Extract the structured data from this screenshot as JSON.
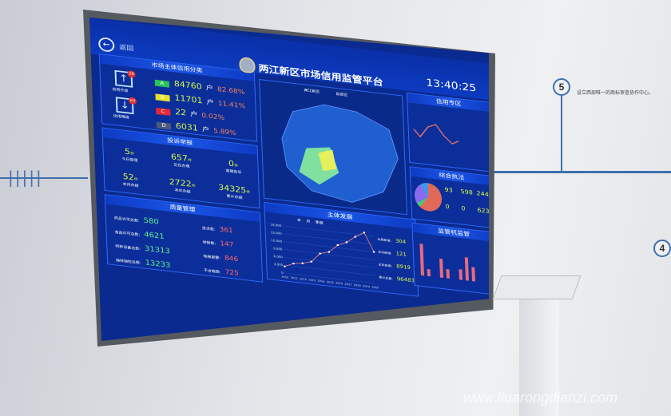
{
  "header": {
    "back_label": "返回",
    "title": "两江新区市场信用监管平台",
    "time": "13:40:25"
  },
  "credit": {
    "title": "市场主体信用分类",
    "upgrade_label": "信用升级",
    "upgrade_count": "28",
    "downgrade_label": "信用降级",
    "downgrade_count": "63",
    "levels": [
      {
        "grade": "A",
        "count": "84760",
        "unit": "户",
        "pct": "82.68%",
        "color": "#27c45a"
      },
      {
        "grade": "B",
        "count": "11701",
        "unit": "户",
        "pct": "11.41%",
        "color": "#e8e02a"
      },
      {
        "grade": "C",
        "count": "22",
        "unit": "户",
        "pct": "0.02%",
        "color": "#e8283a"
      },
      {
        "grade": "D",
        "count": "6031",
        "unit": "户",
        "pct": "5.89%",
        "color": "#4a5a78"
      }
    ]
  },
  "complaints": {
    "title": "投诉举报",
    "unit": "件",
    "items": [
      {
        "value": "5",
        "label": "今日受理"
      },
      {
        "value": "657",
        "label": "正在办理"
      },
      {
        "value": "0",
        "label": "逾期投诉"
      },
      {
        "value": "52",
        "label": "本月办结"
      },
      {
        "value": "2722",
        "label": "本年办结"
      },
      {
        "value": "34325",
        "label": "累计办结"
      }
    ]
  },
  "quality": {
    "title": "质量管理",
    "left": [
      {
        "label": "药品许可总数:",
        "value": "580"
      },
      {
        "label": "食品许可总数:",
        "value": "4621"
      },
      {
        "label": "特种设备总数:",
        "value": "31313"
      },
      {
        "label": "抽样抽检总数:",
        "value": "13233"
      }
    ],
    "right": [
      {
        "label": "投诉数:",
        "value": "361"
      },
      {
        "label": "举报数:",
        "value": "147"
      },
      {
        "label": "电梯报警:",
        "value": "846"
      },
      {
        "label": "不合格数:",
        "value": "725"
      }
    ]
  },
  "map": {
    "options": [
      "两江新区",
      "自贸区"
    ]
  },
  "development": {
    "title": "主体发展",
    "tabs": [
      "年",
      "月",
      "季度"
    ],
    "stats": [
      {
        "label": "本周新增:",
        "value": "304"
      },
      {
        "label": "本月新增:",
        "value": "121"
      },
      {
        "label": "本年新增:",
        "value": "8919"
      },
      {
        "label": "累计总量:",
        "value": "96483"
      }
    ]
  },
  "chart_data": {
    "type": "line",
    "x": [
      "2010",
      "2011",
      "2012",
      "2013",
      "2014",
      "2015",
      "2016",
      "2017",
      "2018",
      "2019",
      "2020"
    ],
    "values": [
      2500,
      4000,
      4500,
      5500,
      9000,
      10000,
      13000,
      14500,
      17000,
      19000,
      12000
    ],
    "ylim": [
      0,
      18000
    ],
    "yticks": [
      "0",
      "3,000",
      "6,000",
      "9,000",
      "12,000",
      "15,000",
      "18,000"
    ]
  },
  "right_panels": {
    "p1_title": "信用专区",
    "p2_title": "综合执法",
    "p2_stats": [
      "93",
      "598",
      "244",
      "0",
      "0",
      "623"
    ],
    "p3_title": "监管机监管"
  },
  "wall": {
    "step5": "5",
    "step4": "4",
    "text": "设立西部唯一的商标审查协作中心。"
  }
}
